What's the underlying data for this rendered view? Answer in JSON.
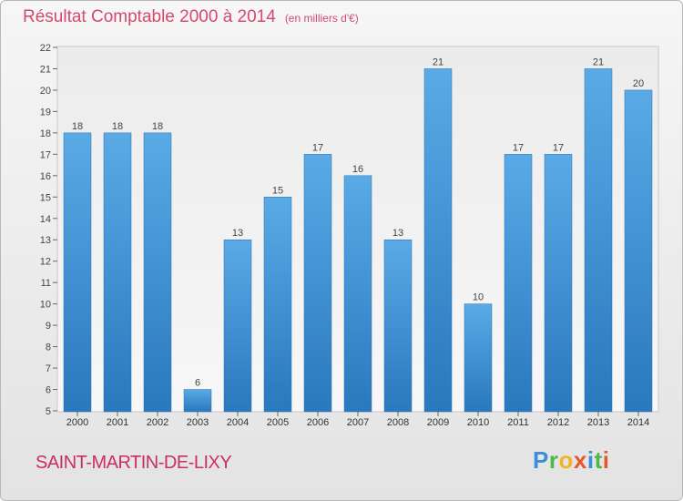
{
  "title": "Résultat Comptable 2000 à 2014",
  "subtitle": "(en milliers d'€)",
  "place": "SAINT-MARTIN-DE-LIXY",
  "logo": [
    "P",
    "r",
    "o",
    "x",
    "i",
    "t",
    "i"
  ],
  "colors": {
    "bar_light": "#5aaae6",
    "bar_dark": "#2a78bd",
    "title": "#d24a6e",
    "place": "#c9305f"
  },
  "chart_data": {
    "type": "bar",
    "categories": [
      "2000",
      "2001",
      "2002",
      "2003",
      "2004",
      "2005",
      "2006",
      "2007",
      "2008",
      "2009",
      "2010",
      "2011",
      "2012",
      "2013",
      "2014"
    ],
    "values": [
      18,
      18,
      18,
      6,
      13,
      15,
      17,
      16,
      13,
      21,
      10,
      17,
      17,
      21,
      20
    ],
    "ylim": [
      5,
      22
    ],
    "yticks": [
      5,
      6,
      7,
      8,
      9,
      10,
      11,
      12,
      13,
      14,
      15,
      16,
      17,
      18,
      19,
      20,
      21,
      22
    ],
    "grid": false,
    "data_labels": true
  }
}
